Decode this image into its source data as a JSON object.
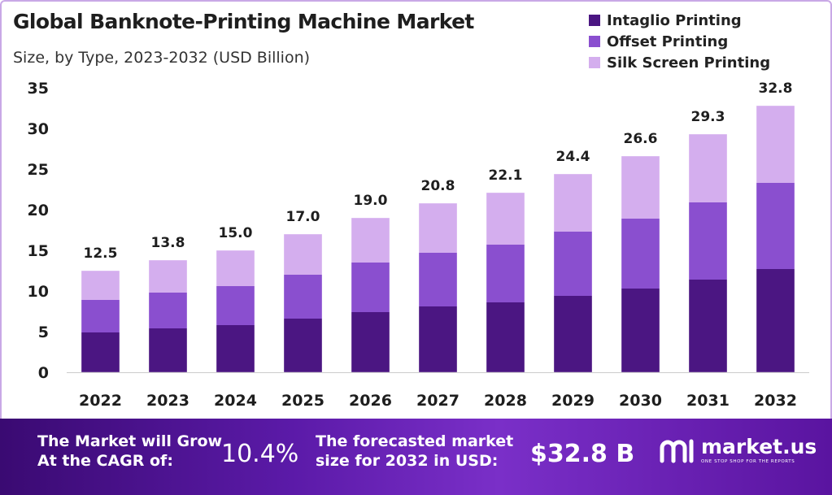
{
  "header": {
    "title": "Global Banknote-Printing Machine Market",
    "subtitle": "Size, by Type, 2023-2032 (USD Billion)"
  },
  "legend": [
    {
      "label": "Intaglio Printing",
      "color": "#4b1682"
    },
    {
      "label": "Offset Printing",
      "color": "#8a4fcf"
    },
    {
      "label": "Silk Screen Printing",
      "color": "#d4aeee"
    }
  ],
  "chart_data": {
    "type": "bar",
    "stacked": true,
    "title": "Global Banknote-Printing Machine Market",
    "subtitle": "Size, by Type, 2023-2032 (USD Billion)",
    "xlabel": "",
    "ylabel": "",
    "ylim": [
      0,
      35
    ],
    "yticks": [
      0,
      5,
      10,
      15,
      20,
      25,
      30,
      35
    ],
    "categories": [
      "2022",
      "2023",
      "2024",
      "2025",
      "2026",
      "2027",
      "2028",
      "2029",
      "2030",
      "2031",
      "2032"
    ],
    "series": [
      {
        "name": "Intaglio Printing",
        "color": "#4b1682",
        "values": [
          4.9,
          5.4,
          5.8,
          6.6,
          7.4,
          8.1,
          8.6,
          9.4,
          10.3,
          11.4,
          12.7
        ]
      },
      {
        "name": "Offset Printing",
        "color": "#8a4fcf",
        "values": [
          4.0,
          4.4,
          4.8,
          5.4,
          6.1,
          6.6,
          7.1,
          7.9,
          8.6,
          9.5,
          10.6
        ]
      },
      {
        "name": "Silk Screen Printing",
        "color": "#d4aeee",
        "values": [
          3.6,
          4.0,
          4.4,
          5.0,
          5.5,
          6.1,
          6.4,
          7.1,
          7.7,
          8.4,
          9.5
        ]
      }
    ],
    "totals": [
      "12.5",
      "13.8",
      "15.0",
      "17.0",
      "19.0",
      "20.8",
      "22.1",
      "24.4",
      "26.6",
      "29.3",
      "32.8"
    ],
    "grid": false
  },
  "footer": {
    "cagr_label_line1": "The Market will Grow",
    "cagr_label_line2": "At the CAGR of:",
    "cagr_value": "10.4%",
    "forecast_label_line1": "The forecasted market",
    "forecast_label_line2": "size for 2032 in USD:",
    "forecast_value": "$32.8 B",
    "brand_name": "market.us",
    "brand_tagline": "ONE STOP SHOP FOR THE REPORTS"
  }
}
